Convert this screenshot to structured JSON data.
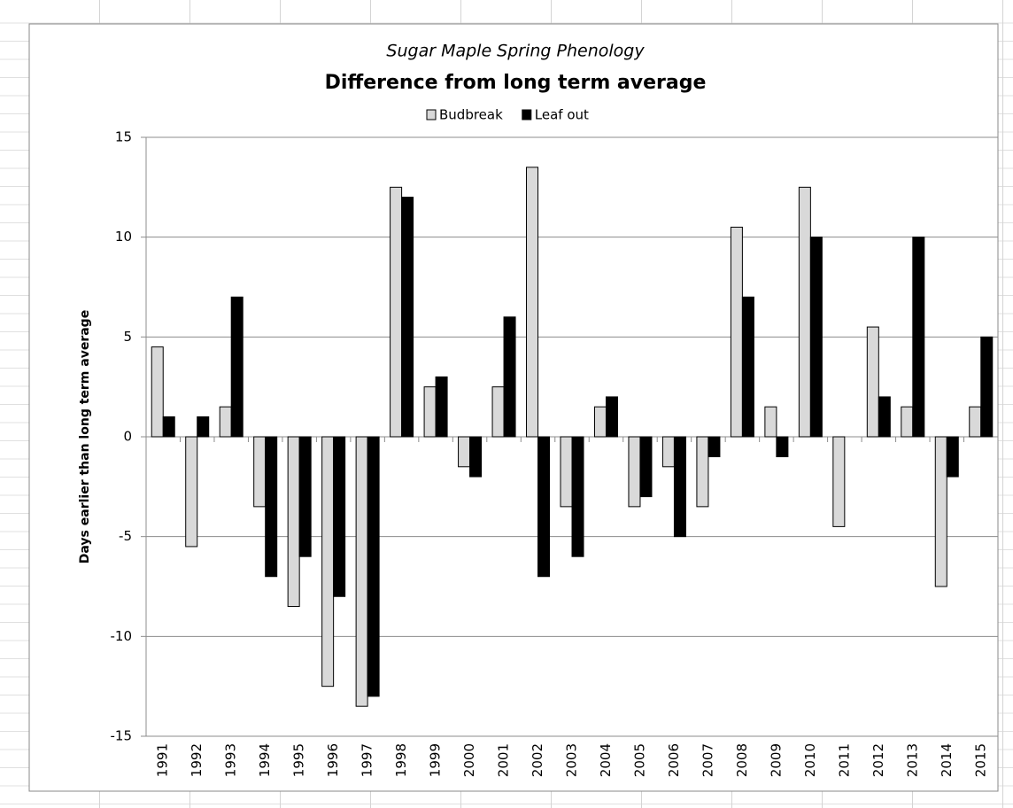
{
  "chart_data": {
    "type": "bar",
    "subtitle": "Sugar Maple Spring Phenology",
    "title": "Difference from long term average",
    "y_label": "Days earlier than long term average",
    "categories": [
      "1991",
      "1992",
      "1993",
      "1994",
      "1995",
      "1996",
      "1997",
      "1998",
      "1999",
      "2000",
      "2001",
      "2002",
      "2003",
      "2004",
      "2005",
      "2006",
      "2007",
      "2008",
      "2009",
      "2010",
      "2011",
      "2012",
      "2013",
      "2014",
      "2015"
    ],
    "series": [
      {
        "name": "Budbreak",
        "color": "#d9d9d9",
        "values": [
          4.5,
          -5.5,
          1.5,
          -3.5,
          -8.5,
          -12.5,
          -13.5,
          12.5,
          2.5,
          -1.5,
          2.5,
          13.5,
          -3.5,
          1.5,
          -3.5,
          -1.5,
          -3.5,
          10.5,
          1.5,
          12.5,
          -4.5,
          5.5,
          1.5,
          -7.5,
          1.5
        ]
      },
      {
        "name": "Leaf out",
        "color": "#000000",
        "values": [
          1,
          1,
          7,
          -7,
          -6,
          -8,
          -13,
          12,
          3,
          -2,
          6,
          -7,
          -6,
          2,
          -3,
          -5,
          -1,
          7,
          -1,
          10,
          0,
          2,
          10,
          -2,
          5
        ]
      }
    ],
    "ylim": [
      -15,
      15
    ],
    "yticks": [
      -15,
      -10,
      -5,
      0,
      5,
      10,
      15
    ],
    "grid": true,
    "legend": "top"
  }
}
